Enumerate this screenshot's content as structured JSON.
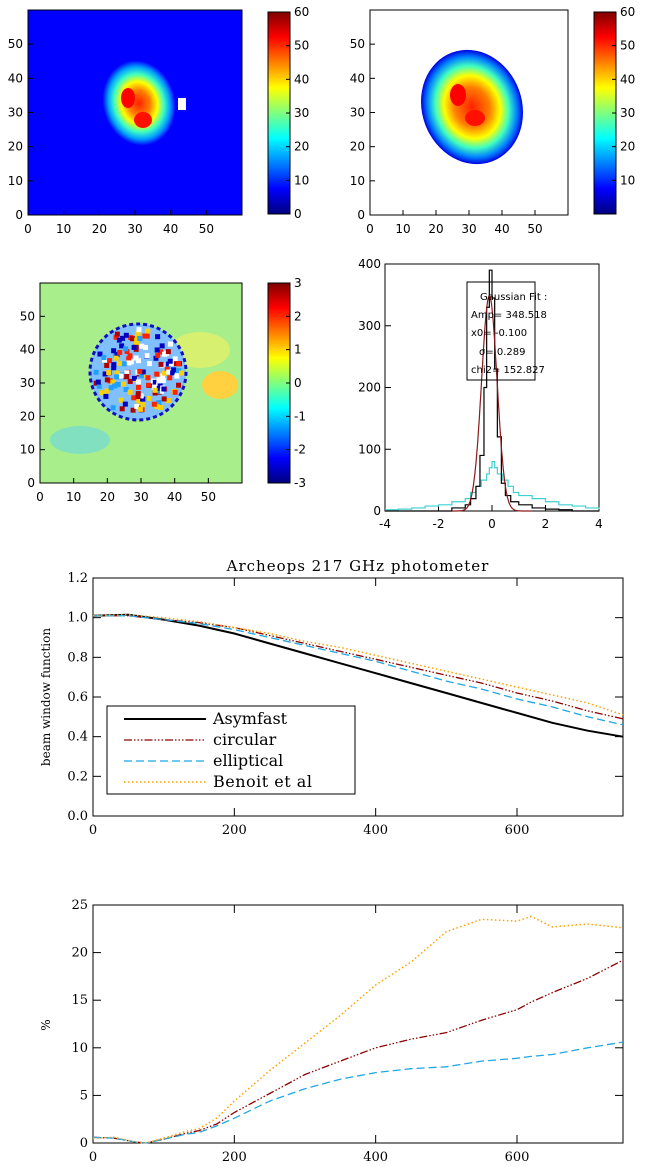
{
  "colors": {
    "jet": [
      "#00007f",
      "#0000ff",
      "#007fff",
      "#00ffff",
      "#7fff7f",
      "#ffff00",
      "#ff7f00",
      "#ff0000",
      "#7f0000"
    ],
    "black": "#000000",
    "circular": "#8b0000",
    "elliptical": "#1fa7e3",
    "benoit": "#ffa000",
    "hist_cyan": "#40d0d0",
    "fit_red": "#8b1a1a"
  },
  "maps": {
    "map_a": {
      "x_ticks": [
        "0",
        "10",
        "20",
        "30",
        "40",
        "50"
      ],
      "y_ticks": [
        "0",
        "10",
        "20",
        "30",
        "40",
        "50"
      ],
      "colorbar_ticks": [
        "0",
        "10",
        "20",
        "30",
        "40",
        "50",
        "60"
      ],
      "range": [
        0,
        60
      ]
    },
    "map_b": {
      "x_ticks": [
        "0",
        "10",
        "20",
        "30",
        "40",
        "50"
      ],
      "y_ticks": [
        "0",
        "10",
        "20",
        "30",
        "40",
        "50"
      ],
      "colorbar_ticks": [
        "10",
        "20",
        "30",
        "40",
        "50",
        "60"
      ],
      "range": [
        0,
        60
      ]
    },
    "map_c": {
      "x_ticks": [
        "0",
        "10",
        "20",
        "30",
        "40",
        "50"
      ],
      "y_ticks": [
        "0",
        "10",
        "20",
        "30",
        "40",
        "50"
      ],
      "colorbar_ticks": [
        "-3",
        "-2",
        "-1",
        "0",
        "1",
        "2",
        "3"
      ],
      "range": [
        -3,
        3
      ]
    }
  },
  "chart_data": [
    {
      "type": "histogram",
      "x_ticks": [
        "-4",
        "-2",
        "0",
        "2",
        "4"
      ],
      "y_ticks": [
        "0",
        "100",
        "200",
        "300",
        "400"
      ],
      "xlim": [
        -4,
        4
      ],
      "ylim": [
        0,
        400
      ],
      "fit_box": {
        "title": "Gaussian Fit :",
        "lines": [
          "Amp= 348.518",
          "x0=   -0.100",
          "σ=    0.289",
          "chi2= 152.827"
        ]
      },
      "gaussian": {
        "amp": 348.518,
        "x0": -0.1,
        "sigma": 0.289
      },
      "series": [
        {
          "kind": "black-histogram",
          "x": [
            -4,
            -3.5,
            -3,
            -2.5,
            -2,
            -1.5,
            -1,
            -0.8,
            -0.6,
            -0.45,
            -0.3,
            -0.2,
            -0.1,
            0,
            0.1,
            0.2,
            0.35,
            0.5,
            0.7,
            1,
            1.5,
            2,
            2.5,
            3,
            3.5,
            4
          ],
          "y": [
            0,
            0,
            0,
            0,
            0,
            5,
            10,
            20,
            40,
            90,
            200,
            330,
            390,
            345,
            230,
            120,
            45,
            25,
            15,
            10,
            5,
            3,
            2,
            0,
            0,
            0
          ]
        },
        {
          "kind": "cyan-histogram",
          "x": [
            -4,
            -3.5,
            -3,
            -2.5,
            -2,
            -1.5,
            -1,
            -0.8,
            -0.6,
            -0.4,
            -0.2,
            -0.1,
            0,
            0.1,
            0.2,
            0.4,
            0.6,
            0.8,
            1,
            1.5,
            2,
            2.5,
            3,
            3.5,
            4
          ],
          "y": [
            2,
            3,
            5,
            8,
            10,
            15,
            20,
            30,
            40,
            50,
            60,
            70,
            80,
            70,
            60,
            50,
            40,
            30,
            25,
            20,
            15,
            10,
            8,
            5,
            3
          ]
        }
      ]
    },
    {
      "type": "line",
      "title": "Archeops 217 GHz photometer",
      "ylabel": "beam window function",
      "xlim": [
        0,
        750
      ],
      "ylim": [
        0.0,
        1.2
      ],
      "x_ticks": [
        "0",
        "200",
        "400",
        "600"
      ],
      "y_ticks": [
        "0.0",
        "0.2",
        "0.4",
        "0.6",
        "0.8",
        "1.0",
        "1.2"
      ],
      "legend": [
        "Asymfast",
        "circular",
        "elliptical",
        "Benoit et al"
      ],
      "legend_position": "bottom-left",
      "x": [
        0,
        50,
        100,
        150,
        200,
        250,
        300,
        350,
        400,
        450,
        500,
        550,
        600,
        650,
        700,
        750
      ],
      "series": [
        {
          "name": "Asymfast",
          "values": [
            1.01,
            1.015,
            0.99,
            0.96,
            0.92,
            0.87,
            0.82,
            0.77,
            0.72,
            0.67,
            0.62,
            0.57,
            0.52,
            0.47,
            0.43,
            0.4
          ]
        },
        {
          "name": "circular",
          "values": [
            1.01,
            1.01,
            0.99,
            0.975,
            0.95,
            0.91,
            0.87,
            0.83,
            0.79,
            0.75,
            0.71,
            0.67,
            0.62,
            0.58,
            0.53,
            0.49
          ]
        },
        {
          "name": "elliptical",
          "values": [
            1.01,
            1.01,
            0.99,
            0.97,
            0.94,
            0.9,
            0.86,
            0.82,
            0.78,
            0.73,
            0.68,
            0.64,
            0.59,
            0.55,
            0.5,
            0.46
          ]
        },
        {
          "name": "Benoit et al",
          "values": [
            1.01,
            1.015,
            1.0,
            0.98,
            0.95,
            0.92,
            0.88,
            0.85,
            0.81,
            0.77,
            0.73,
            0.69,
            0.65,
            0.61,
            0.57,
            0.51
          ]
        }
      ]
    },
    {
      "type": "line",
      "ylabel": "%",
      "xlim": [
        0,
        750
      ],
      "ylim": [
        0,
        25
      ],
      "x_ticks": [
        "0",
        "200",
        "400",
        "600"
      ],
      "y_ticks": [
        "0",
        "5",
        "10",
        "15",
        "20",
        "25"
      ],
      "x": [
        0,
        30,
        60,
        75,
        100,
        130,
        150,
        175,
        200,
        250,
        300,
        350,
        400,
        450,
        500,
        550,
        600,
        620,
        650,
        700,
        750
      ],
      "series": [
        {
          "name": "circular",
          "values": [
            0.6,
            0.5,
            0.1,
            0,
            0.4,
            1.0,
            1.3,
            2.0,
            3.2,
            5.2,
            7.2,
            8.6,
            10.0,
            10.9,
            11.6,
            12.9,
            14.0,
            14.8,
            15.8,
            17.3,
            19.2
          ]
        },
        {
          "name": "elliptical",
          "values": [
            0.6,
            0.5,
            0.1,
            0,
            0.4,
            0.9,
            1.1,
            1.8,
            2.6,
            4.4,
            5.7,
            6.7,
            7.4,
            7.8,
            8.0,
            8.6,
            8.9,
            9.1,
            9.3,
            10.0,
            10.6
          ]
        },
        {
          "name": "Benoit et al",
          "values": [
            0.5,
            0.6,
            0.1,
            0,
            0.5,
            1.2,
            1.5,
            2.6,
            4.4,
            7.6,
            10.5,
            13.4,
            16.6,
            19.0,
            22.2,
            23.5,
            23.3,
            23.8,
            22.7,
            23.0,
            22.6
          ]
        }
      ]
    }
  ]
}
